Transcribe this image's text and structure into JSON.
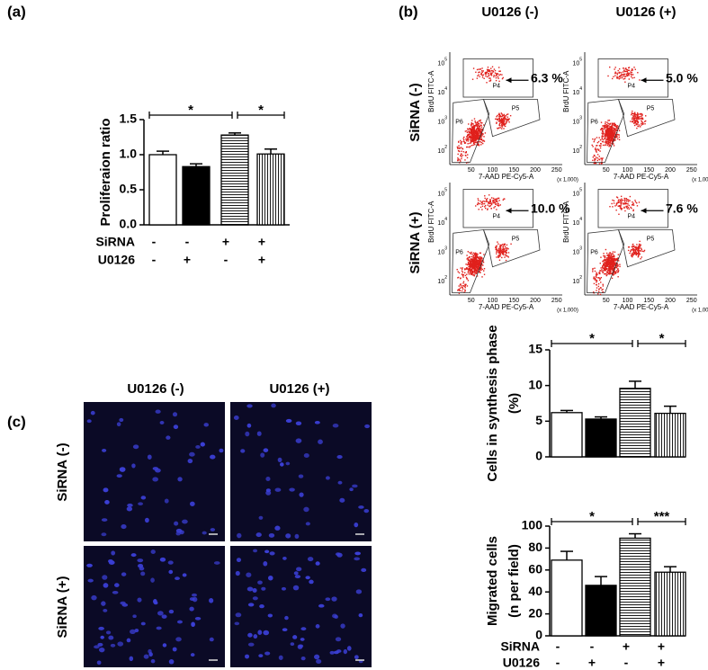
{
  "chart_data": [
    {
      "type": "bar",
      "y_label": [
        "Proliferaion ratio"
      ],
      "values": [
        1.0,
        0.83,
        1.28,
        1.01
      ],
      "errors": [
        0.05,
        0.04,
        0.03,
        0.07
      ],
      "patterns": [
        "white",
        "black",
        "horizontal",
        "vertical"
      ],
      "ylim": [
        0,
        1.5
      ],
      "yticks": [
        {
          "value": 0,
          "label": "0.0"
        },
        0.5,
        {
          "value": 1,
          "label": "1.0"
        },
        1.5
      ],
      "annotations": [
        "*",
        "*"
      ],
      "conditions": [
        {
          "name": "SiRNA",
          "signs": [
            "-",
            "-",
            "+",
            "+"
          ]
        },
        {
          "name": "U0126",
          "signs": [
            "-",
            "+",
            "-",
            "+"
          ]
        }
      ]
    },
    {
      "type": "bar",
      "y_label": [
        "Cells in synthesis phase",
        "(%)"
      ],
      "values": [
        6.2,
        5.3,
        9.6,
        6.1
      ],
      "errors": [
        0.3,
        0.3,
        1.0,
        1.0
      ],
      "patterns": [
        "white",
        "black",
        "horizontal",
        "vertical"
      ],
      "ylim": [
        0,
        15
      ],
      "yticks": [
        0,
        5,
        10,
        15
      ],
      "annotations": [
        "*",
        "*"
      ]
    },
    {
      "type": "bar",
      "y_label": [
        "Migrated cells",
        "(n per field)"
      ],
      "values": [
        69,
        46,
        89,
        58
      ],
      "errors": [
        8,
        8,
        4,
        5
      ],
      "patterns": [
        "white",
        "black",
        "horizontal",
        "vertical"
      ],
      "ylim": [
        0,
        100
      ],
      "yticks": [
        0,
        20,
        40,
        60,
        80,
        100
      ],
      "annotations": [
        "*",
        "***"
      ],
      "conditions": [
        {
          "name": "SiRNA",
          "signs": [
            "-",
            "-",
            "+",
            "+"
          ]
        },
        {
          "name": "U0126",
          "signs": [
            "-",
            "+",
            "-",
            "+"
          ]
        }
      ]
    }
  ],
  "panel_labels": [
    "(a)",
    "(b)",
    "(c)"
  ],
  "flow": {
    "columns": [
      "U0126 (-)",
      "U0126 (+)"
    ],
    "rows": [
      "SiRNA (-)",
      "SiRNA (+)"
    ],
    "percents": [
      "6.3 %",
      "5.0 %",
      "10.0 %",
      "7.6 %"
    ],
    "x_label": "7-AAD PE-Cy5-A",
    "x_unit": "(x 1,000)",
    "y_label": "BrdU FITC-A",
    "x_ticks": [
      50,
      100,
      150,
      200,
      250
    ],
    "y_ticks": [
      {
        "base": "10",
        "exp": "2"
      },
      {
        "base": "10",
        "exp": "3"
      },
      {
        "base": "10",
        "exp": "4"
      },
      {
        "base": "10",
        "exp": "5"
      }
    ],
    "gates": [
      "P4",
      "P5",
      "P6"
    ]
  },
  "microscopy": {
    "columns": [
      "U0126 (-)",
      "U0126 (+)"
    ],
    "rows": [
      "SiRNA (-)",
      "SiRNA (+)"
    ]
  }
}
